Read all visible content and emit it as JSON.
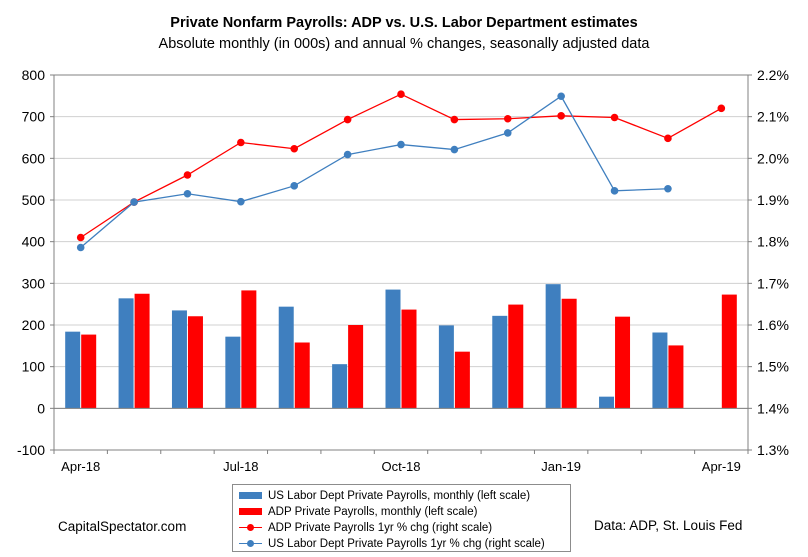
{
  "title": "Private Nonfarm Payrolls: ADP vs. U.S. Labor Department estimates",
  "subtitle": "Absolute monthly (in 000s) and annual % changes, seasonally adjusted data",
  "credit": "CapitalSpectator.com",
  "source": "Data: ADP, St. Louis Fed",
  "colors": {
    "bls": "#3f7fbf",
    "adp": "#ff0000",
    "grid": "#d0d0d0",
    "axis": "#808080"
  },
  "chart_data": {
    "type": "bar",
    "x": [
      "2018-04",
      "2018-05",
      "2018-06",
      "2018-07",
      "2018-08",
      "2018-09",
      "2018-10",
      "2018-11",
      "2018-12",
      "2019-01",
      "2019-02",
      "2019-03",
      "2019-04"
    ],
    "x_tick_labels": [
      {
        "month": "2018-04",
        "label": "Apr-18"
      },
      {
        "month": "2018-07",
        "label": "Jul-18"
      },
      {
        "month": "2018-10",
        "label": "Oct-18"
      },
      {
        "month": "2019-01",
        "label": "Jan-19"
      },
      {
        "month": "2019-04",
        "label": "Apr-19"
      }
    ],
    "left_axis": {
      "ylim": [
        -100,
        800
      ],
      "ticks": [
        "-100",
        "0",
        "100",
        "200",
        "300",
        "400",
        "500",
        "600",
        "700",
        "800"
      ]
    },
    "right_axis": {
      "ylim": [
        1.3,
        2.2
      ],
      "ticks": [
        "1.3%",
        "1.4%",
        "1.5%",
        "1.6%",
        "1.7%",
        "1.8%",
        "1.9%",
        "2.0%",
        "2.1%",
        "2.2%"
      ]
    },
    "grid": true,
    "legend_position": "bottom",
    "series": [
      {
        "name": "US Labor Dept Private Payrolls, monthly (left scale)",
        "kind": "bar",
        "axis": "left",
        "color": "#3f7fbf",
        "values": [
          184,
          264,
          235,
          172,
          244,
          106,
          285,
          199,
          222,
          298,
          28,
          182,
          null
        ]
      },
      {
        "name": "ADP Private Payrolls, monthly (left scale)",
        "kind": "bar",
        "axis": "left",
        "color": "#ff0000",
        "values": [
          177,
          275,
          221,
          283,
          158,
          200,
          237,
          136,
          249,
          263,
          220,
          151,
          273
        ]
      },
      {
        "name": "ADP Private Payrolls 1yr % chg (right scale)",
        "kind": "line",
        "axis": "right",
        "color": "#ff0000",
        "values": [
          1.81,
          1.895,
          1.96,
          2.038,
          2.023,
          2.093,
          2.154,
          2.093,
          2.095,
          2.102,
          2.098,
          2.048,
          2.12
        ]
      },
      {
        "name": "US Labor Dept Private Payrolls 1yr % chg (right scale)",
        "kind": "line",
        "axis": "right",
        "color": "#3f7fbf",
        "values": [
          1.786,
          1.895,
          1.915,
          1.896,
          1.934,
          2.009,
          2.033,
          2.021,
          2.061,
          2.149,
          1.922,
          1.927,
          null
        ]
      }
    ]
  }
}
